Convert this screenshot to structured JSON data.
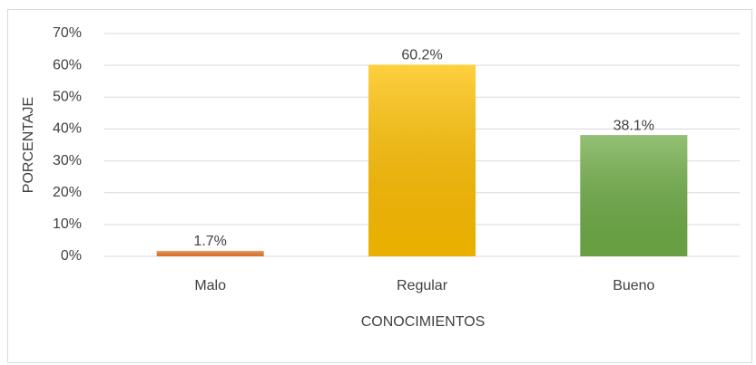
{
  "chart_data": {
    "type": "bar",
    "x_label": "CONOCIMIENTOS",
    "y_label": "PORCENTAJE",
    "categories": [
      "Malo",
      "Regular",
      "Bueno"
    ],
    "values": [
      1.7,
      60.2,
      38.1
    ],
    "value_labels": [
      "1.7%",
      "60.2%",
      "38.1%"
    ],
    "colors": [
      "#ed7d31",
      "#ffc000",
      "#70ad47"
    ],
    "ylim": [
      0,
      70
    ],
    "yticks": [
      {
        "value": 0,
        "label": "0%"
      },
      {
        "value": 10,
        "label": "10%"
      },
      {
        "value": 20,
        "label": "20%"
      },
      {
        "value": 30,
        "label": "30%"
      },
      {
        "value": 40,
        "label": "40%"
      },
      {
        "value": 50,
        "label": "50%"
      },
      {
        "value": 60,
        "label": "60%"
      },
      {
        "value": 70,
        "label": "70%"
      }
    ],
    "grid": true
  }
}
